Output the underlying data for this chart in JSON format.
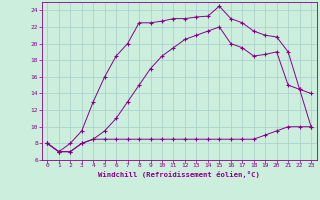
{
  "xlabel": "Windchill (Refroidissement éolien,°C)",
  "bg_color": "#cceedd",
  "grid_color": "#aacccc",
  "line_color": "#880088",
  "xlim": [
    -0.5,
    23.5
  ],
  "ylim": [
    6,
    25
  ],
  "xticks": [
    0,
    1,
    2,
    3,
    4,
    5,
    6,
    7,
    8,
    9,
    10,
    11,
    12,
    13,
    14,
    15,
    16,
    17,
    18,
    19,
    20,
    21,
    22,
    23
  ],
  "yticks": [
    6,
    8,
    10,
    12,
    14,
    16,
    18,
    20,
    22,
    24
  ],
  "line1_x": [
    0,
    1,
    2,
    3,
    4,
    5,
    6,
    7,
    8,
    9,
    10,
    11,
    12,
    13,
    14,
    15,
    16,
    17,
    18,
    19,
    20,
    21,
    22,
    23
  ],
  "line1_y": [
    8.0,
    7.0,
    7.0,
    8.0,
    8.5,
    8.5,
    8.5,
    8.5,
    8.5,
    8.5,
    8.5,
    8.5,
    8.5,
    8.5,
    8.5,
    8.5,
    8.5,
    8.5,
    8.5,
    9.0,
    9.5,
    10.0,
    10.0,
    10.0
  ],
  "line2_x": [
    0,
    1,
    2,
    3,
    4,
    5,
    6,
    7,
    8,
    9,
    10,
    11,
    12,
    13,
    14,
    15,
    16,
    17,
    18,
    19,
    20,
    21,
    22,
    23
  ],
  "line2_y": [
    8.0,
    7.0,
    8.0,
    9.5,
    13.0,
    16.0,
    18.5,
    20.0,
    22.5,
    22.5,
    22.7,
    23.0,
    23.0,
    23.2,
    23.3,
    24.5,
    23.0,
    22.5,
    21.5,
    21.0,
    20.8,
    19.0,
    14.5,
    14.0
  ],
  "line3_x": [
    0,
    1,
    2,
    3,
    4,
    5,
    6,
    7,
    8,
    9,
    10,
    11,
    12,
    13,
    14,
    15,
    16,
    17,
    18,
    19,
    20,
    21,
    22,
    23
  ],
  "line3_y": [
    8.0,
    7.0,
    7.0,
    8.0,
    8.5,
    9.5,
    11.0,
    13.0,
    15.0,
    17.0,
    18.5,
    19.5,
    20.5,
    21.0,
    21.5,
    22.0,
    20.0,
    19.5,
    18.5,
    18.7,
    19.0,
    15.0,
    14.5,
    10.0
  ]
}
